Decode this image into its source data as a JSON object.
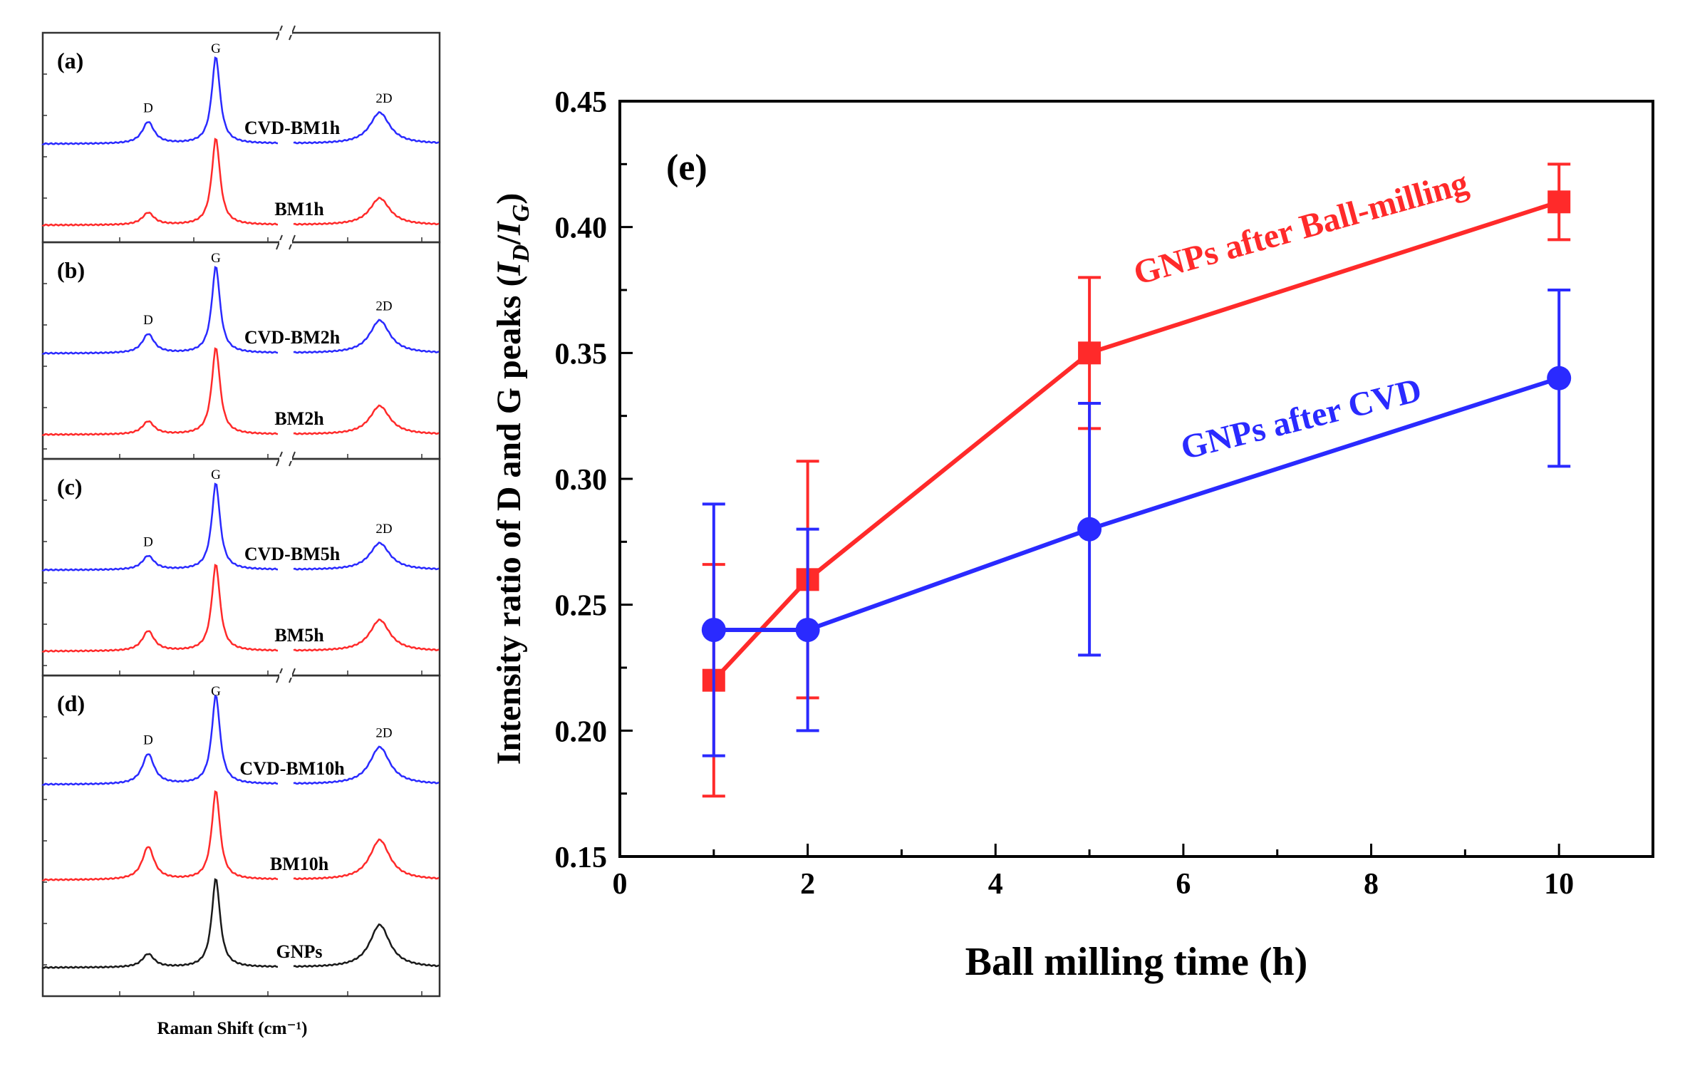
{
  "colors": {
    "red": "#ff2a2a",
    "blue": "#2a2aff",
    "black": "#1a1a1a"
  },
  "chart_data": [
    {
      "type": "line",
      "panel": "raman-spectra",
      "xlabel": "Raman Shift (cm⁻¹)",
      "panels": [
        {
          "label": "(a)",
          "peaks": {
            "d": "D",
            "g": "G",
            "two_d": "2D"
          },
          "blue_name": "CVD-BM1h",
          "red_name": "BM1h",
          "intensity": {
            "blue": {
              "d": 0.25,
              "g": 1.0,
              "two_d": 0.36
            },
            "red": {
              "d": 0.14,
              "g": 1.0,
              "two_d": 0.31
            }
          }
        },
        {
          "label": "(b)",
          "peaks": {
            "d": "D",
            "g": "G",
            "two_d": "2D"
          },
          "blue_name": "CVD-BM2h",
          "red_name": "BM2h",
          "intensity": {
            "blue": {
              "d": 0.22,
              "g": 1.0,
              "two_d": 0.38
            },
            "red": {
              "d": 0.15,
              "g": 1.0,
              "two_d": 0.33
            }
          }
        },
        {
          "label": "(c)",
          "peaks": {
            "d": "D",
            "g": "G",
            "two_d": "2D"
          },
          "blue_name": "CVD-BM5h",
          "red_name": "BM5h",
          "intensity": {
            "blue": {
              "d": 0.16,
              "g": 1.0,
              "two_d": 0.31
            },
            "red": {
              "d": 0.23,
              "g": 1.0,
              "two_d": 0.36
            }
          }
        },
        {
          "label": "(d)",
          "peaks": {
            "d": "D",
            "g": "G",
            "two_d": "2D"
          },
          "blue_name": "CVD-BM10h",
          "red_name": "BM10h",
          "black_name": "GNPs",
          "intensity": {
            "blue": {
              "d": 0.34,
              "g": 1.0,
              "two_d": 0.42
            },
            "red": {
              "d": 0.37,
              "g": 1.0,
              "two_d": 0.45
            },
            "black": {
              "d": 0.15,
              "g": 1.0,
              "two_d": 0.48
            }
          }
        }
      ]
    },
    {
      "type": "line",
      "panel_label": "(e)",
      "xlabel": "Ball milling time (h)",
      "ylabel_parts": [
        "Intensity ratio of D and G peaks (",
        "I",
        "D",
        "/",
        "I",
        "G",
        ")"
      ],
      "xlim": [
        0,
        11
      ],
      "ylim": [
        0.15,
        0.45
      ],
      "xticks": [
        0,
        2,
        4,
        6,
        8,
        10
      ],
      "yticks": [
        "0.15",
        "0.20",
        "0.25",
        "0.30",
        "0.35",
        "0.40",
        "0.45"
      ],
      "series": [
        {
          "name": "GNPs after Ball-milling",
          "color": "#ff2a2a",
          "marker": "square",
          "x": [
            1,
            2,
            5,
            10
          ],
          "y": [
            0.22,
            0.26,
            0.35,
            0.41
          ],
          "err_low": [
            0.174,
            0.213,
            0.32,
            0.395
          ],
          "err_high": [
            0.266,
            0.307,
            0.38,
            0.425
          ]
        },
        {
          "name": "GNPs after CVD",
          "color": "#2a2aff",
          "marker": "circle",
          "x": [
            1,
            2,
            5,
            10
          ],
          "y": [
            0.24,
            0.24,
            0.28,
            0.34
          ],
          "err_low": [
            0.19,
            0.2,
            0.23,
            0.305
          ],
          "err_high": [
            0.29,
            0.28,
            0.33,
            0.375
          ]
        }
      ]
    }
  ]
}
